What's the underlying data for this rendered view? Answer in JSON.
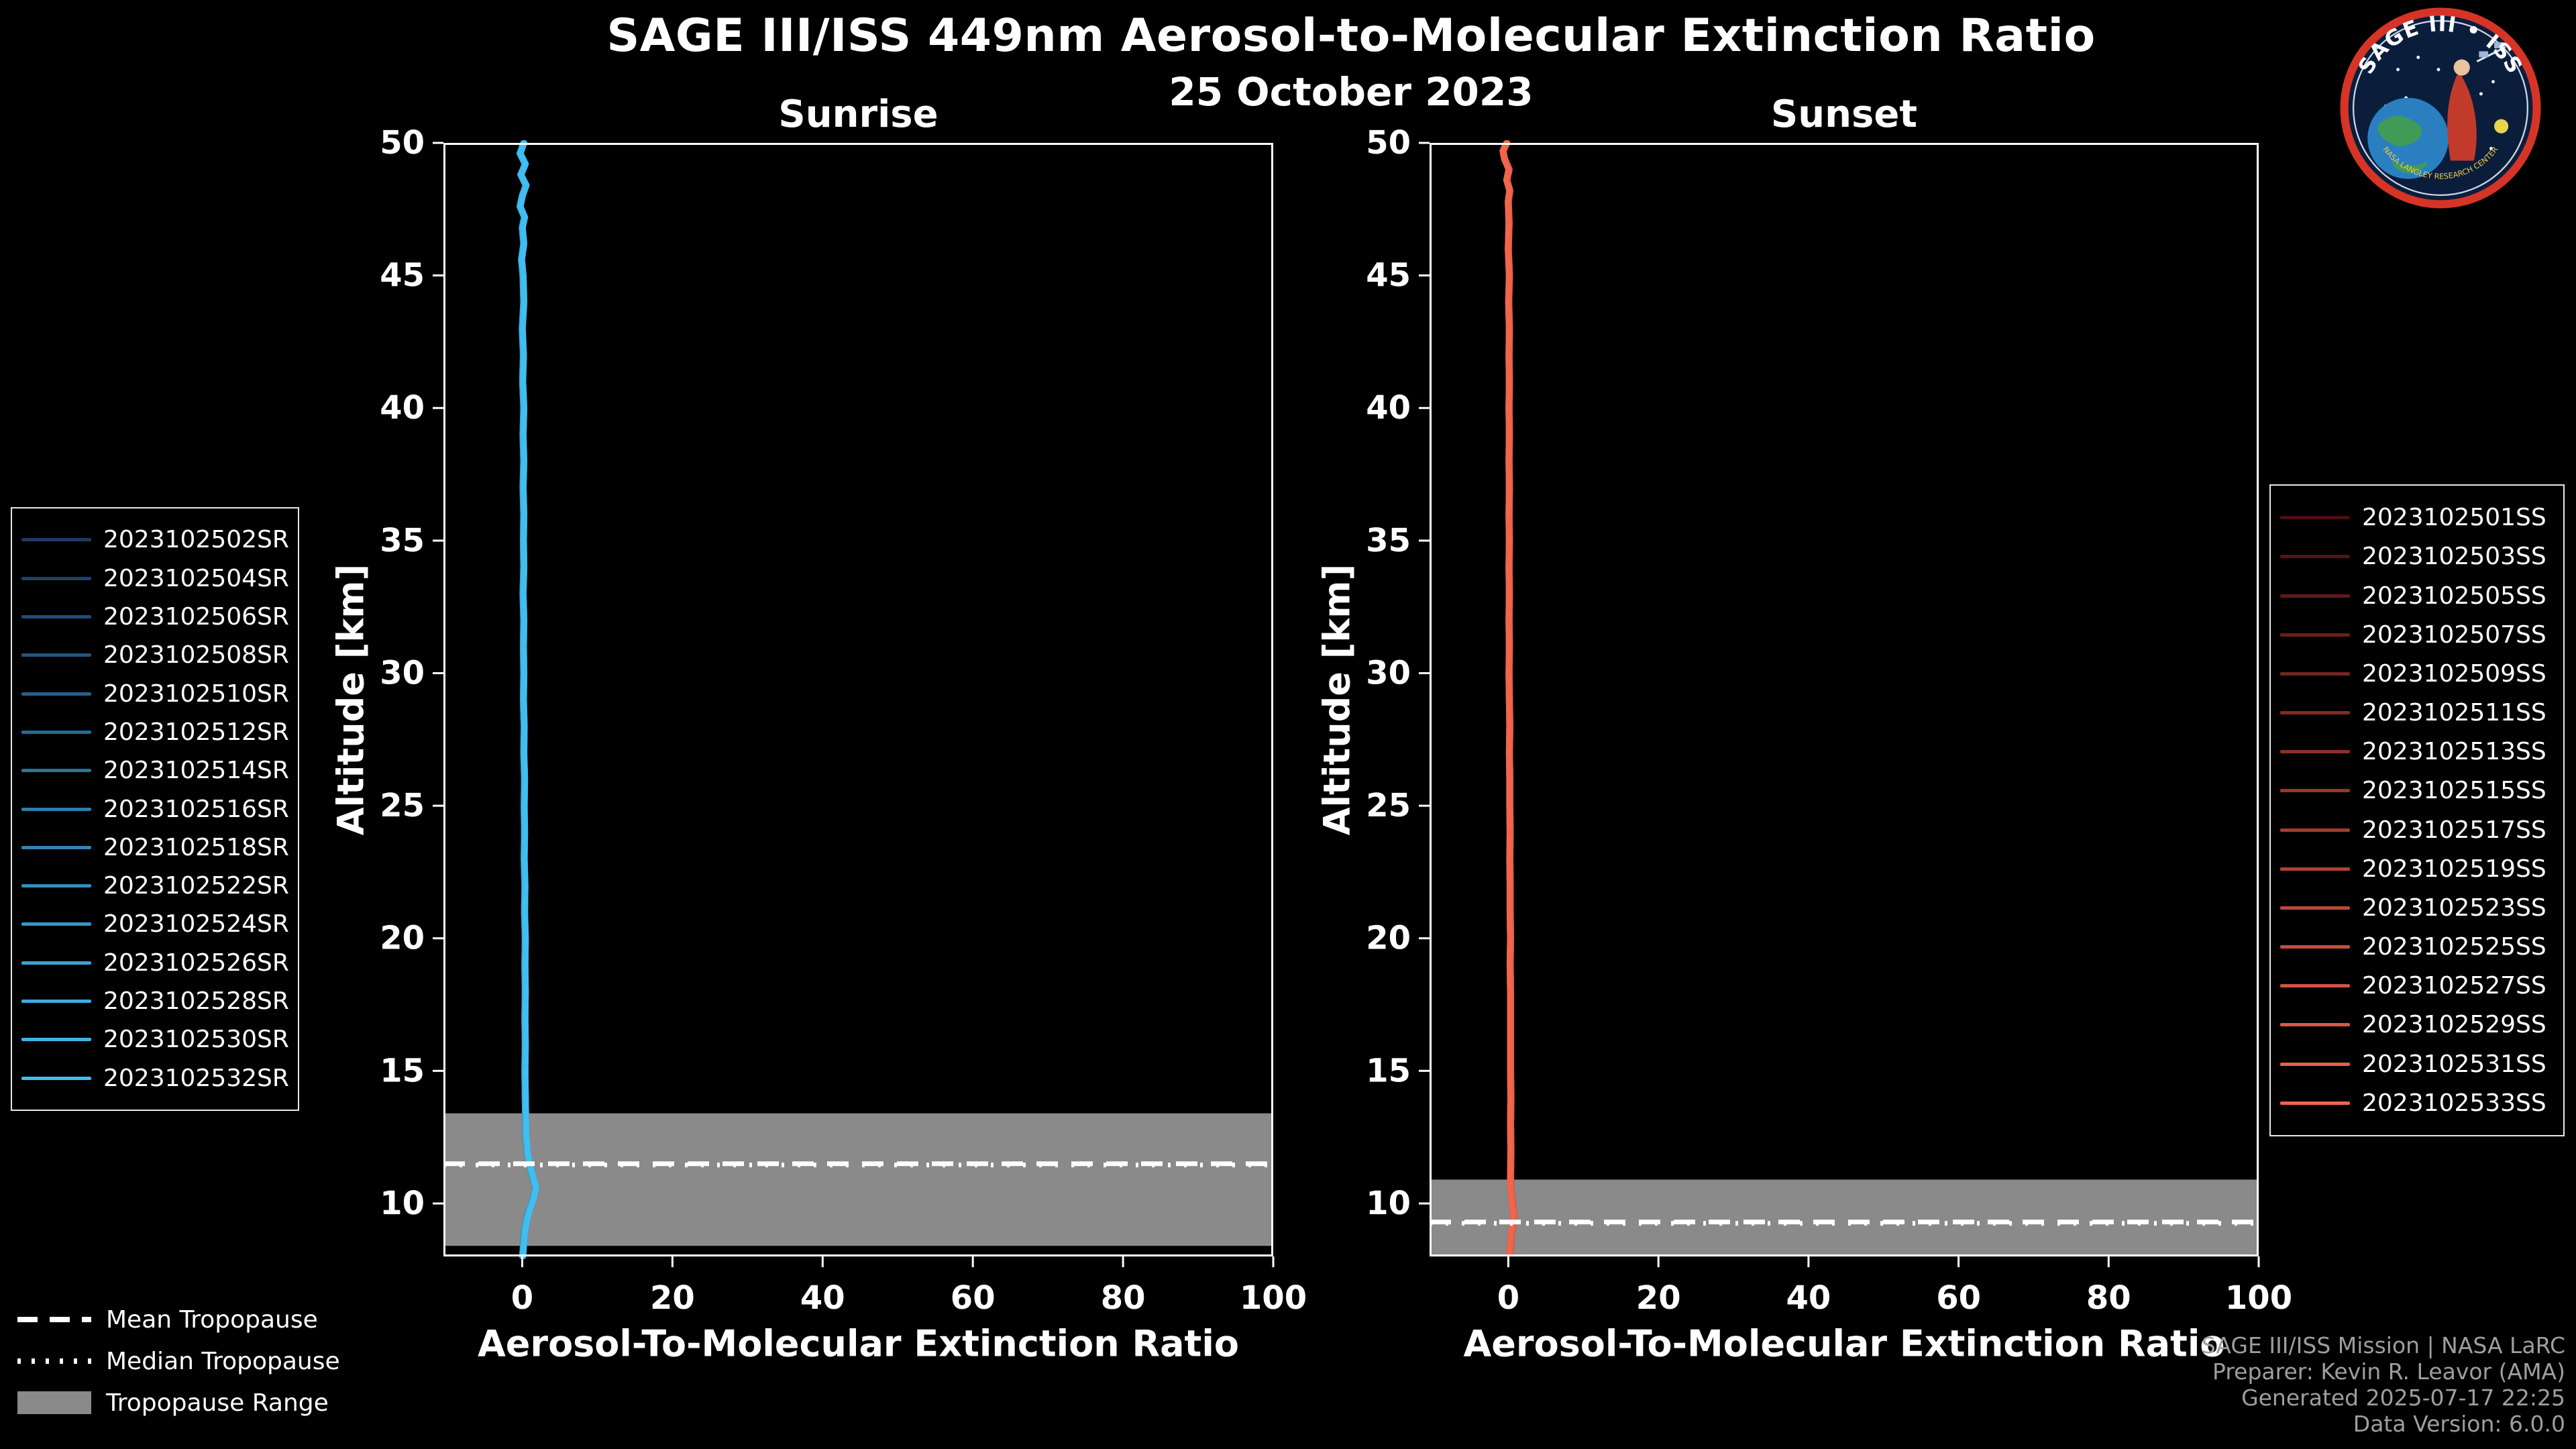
{
  "header": {
    "title": "SAGE III/ISS 449nm Aerosol-to-Molecular Extinction Ratio",
    "date": "25 October 2023"
  },
  "logo": {
    "title": "SAGE III • ISS",
    "arc_text": "NASA LANGLEY RESEARCH CENTER"
  },
  "tropopause_legend": {
    "mean_label": "Mean Tropopause",
    "median_label": "Median Tropopause",
    "range_label": "Tropopause Range"
  },
  "credits": {
    "line1": "SAGE III/ISS Mission | NASA LaRC",
    "line2": "Preparer: Kevin R. Leavor (AMA)",
    "line3": "Generated 2025-07-17 22:25",
    "line4": "Data Version: 6.0.0"
  },
  "colors": {
    "background": "#000000",
    "foreground": "#ffffff",
    "sunrise_profile": "#41bef0",
    "sunset_profile": "#f2654d",
    "tropopause_band": "#8a8a8a",
    "credits_text": "#9e9e9e",
    "logo_ring": "#d63427",
    "logo_bg": "#0a1e3c"
  },
  "legends": {
    "sunrise": {
      "items": [
        {
          "label": "2023102502SR",
          "color": "#1a3a62"
        },
        {
          "label": "2023102504SR",
          "color": "#1d436c"
        },
        {
          "label": "2023102506SR",
          "color": "#204d76"
        },
        {
          "label": "2023102508SR",
          "color": "#225680"
        },
        {
          "label": "2023102510SR",
          "color": "#25608b"
        },
        {
          "label": "2023102512SR",
          "color": "#286995"
        },
        {
          "label": "2023102514SR",
          "color": "#2b739f"
        },
        {
          "label": "2023102516SR",
          "color": "#2e7ca9"
        },
        {
          "label": "2023102518SR",
          "color": "#3085b3"
        },
        {
          "label": "2023102522SR",
          "color": "#338fbd"
        },
        {
          "label": "2023102524SR",
          "color": "#3698c7"
        },
        {
          "label": "2023102526SR",
          "color": "#39a2d2"
        },
        {
          "label": "2023102528SR",
          "color": "#3babdc"
        },
        {
          "label": "2023102530SR",
          "color": "#3eb5e6"
        },
        {
          "label": "2023102532SR",
          "color": "#41bef0"
        }
      ]
    },
    "sunset": {
      "items": [
        {
          "label": "2023102501SS",
          "color": "#4a0e10"
        },
        {
          "label": "2023102503SS",
          "color": "#551414"
        },
        {
          "label": "2023102505SS",
          "color": "#601a18"
        },
        {
          "label": "2023102507SS",
          "color": "#6c1f1c"
        },
        {
          "label": "2023102509SS",
          "color": "#772520"
        },
        {
          "label": "2023102511SS",
          "color": "#822b24"
        },
        {
          "label": "2023102513SS",
          "color": "#8d3128"
        },
        {
          "label": "2023102515SS",
          "color": "#98372c"
        },
        {
          "label": "2023102517SS",
          "color": "#a43c31"
        },
        {
          "label": "2023102519SS",
          "color": "#af4235"
        },
        {
          "label": "2023102523SS",
          "color": "#ba4839"
        },
        {
          "label": "2023102525SS",
          "color": "#c54e3d"
        },
        {
          "label": "2023102527SS",
          "color": "#d15341"
        },
        {
          "label": "2023102529SS",
          "color": "#dc5945"
        },
        {
          "label": "2023102531SS",
          "color": "#e75f49"
        },
        {
          "label": "2023102533SS",
          "color": "#f2654d"
        }
      ]
    }
  },
  "chart_data": [
    {
      "type": "line",
      "id": "sunrise",
      "subtitle": "Sunrise",
      "xlabel": "Aerosol-To-Molecular Extinction Ratio",
      "ylabel": "Altitude [km]",
      "xlim": [
        -10.5,
        100
      ],
      "ylim": [
        8,
        50
      ],
      "xticks": [
        0,
        20,
        40,
        60,
        80,
        100
      ],
      "yticks": [
        10,
        15,
        20,
        25,
        30,
        35,
        40,
        45,
        50
      ],
      "grid": false,
      "legend_position": "outside-left",
      "n_events": 15,
      "tropopause": {
        "mean_km": 11.5,
        "median_km": 11.45,
        "range_km": [
          8.4,
          13.4
        ]
      },
      "profile": [
        [
          0.2,
          50
        ],
        [
          -0.3,
          49.6
        ],
        [
          0.4,
          49.2
        ],
        [
          -0.2,
          48.8
        ],
        [
          0.5,
          48.4
        ],
        [
          0,
          48
        ],
        [
          -0.3,
          47.6
        ],
        [
          0.3,
          47.2
        ],
        [
          0,
          46.8
        ],
        [
          0.2,
          46.2
        ],
        [
          -0.1,
          45.6
        ],
        [
          0.1,
          45
        ],
        [
          0.2,
          44
        ],
        [
          0,
          43
        ],
        [
          0.15,
          42
        ],
        [
          0.05,
          41
        ],
        [
          0.2,
          40
        ],
        [
          0.1,
          39
        ],
        [
          0.2,
          38
        ],
        [
          0.1,
          37
        ],
        [
          0.2,
          36
        ],
        [
          0.15,
          35
        ],
        [
          0.2,
          34
        ],
        [
          0.1,
          33
        ],
        [
          0.2,
          32
        ],
        [
          0.15,
          31
        ],
        [
          0.2,
          30
        ],
        [
          0.15,
          29
        ],
        [
          0.25,
          28
        ],
        [
          0.2,
          27
        ],
        [
          0.3,
          26
        ],
        [
          0.25,
          25
        ],
        [
          0.3,
          24
        ],
        [
          0.25,
          23
        ],
        [
          0.35,
          22
        ],
        [
          0.3,
          21
        ],
        [
          0.4,
          20
        ],
        [
          0.35,
          19
        ],
        [
          0.4,
          18
        ],
        [
          0.35,
          17
        ],
        [
          0.4,
          16
        ],
        [
          0.35,
          15
        ],
        [
          0.4,
          14
        ],
        [
          0.45,
          13
        ],
        [
          0.5,
          12.5
        ],
        [
          0.65,
          12
        ],
        [
          0.9,
          11.5
        ],
        [
          1.4,
          11
        ],
        [
          1.8,
          10.6
        ],
        [
          1.5,
          10.2
        ],
        [
          1,
          9.8
        ],
        [
          0.6,
          9.4
        ],
        [
          0.35,
          9
        ],
        [
          0.2,
          8.6
        ],
        [
          0.1,
          8.2
        ],
        [
          0.05,
          8
        ]
      ]
    },
    {
      "type": "line",
      "id": "sunset",
      "subtitle": "Sunset",
      "xlabel": "Aerosol-To-Molecular Extinction Ratio",
      "ylabel": "Altitude [km]",
      "xlim": [
        -10.5,
        100
      ],
      "ylim": [
        8,
        50
      ],
      "xticks": [
        0,
        20,
        40,
        60,
        80,
        100
      ],
      "yticks": [
        10,
        15,
        20,
        25,
        30,
        35,
        40,
        45,
        50
      ],
      "grid": false,
      "legend_position": "outside-right",
      "n_events": 16,
      "tropopause": {
        "mean_km": 9.3,
        "median_km": 9.25,
        "range_km": [
          8.0,
          10.9
        ]
      },
      "profile": [
        [
          -0.2,
          50
        ],
        [
          -0.7,
          49.7
        ],
        [
          -0.5,
          49.4
        ],
        [
          0.1,
          49
        ],
        [
          -0.2,
          48.6
        ],
        [
          0.2,
          48.2
        ],
        [
          0,
          47.8
        ],
        [
          0.1,
          47
        ],
        [
          0,
          46
        ],
        [
          0.15,
          45
        ],
        [
          0.05,
          44
        ],
        [
          0.15,
          43
        ],
        [
          0.1,
          42
        ],
        [
          0.15,
          41
        ],
        [
          0.1,
          40
        ],
        [
          0.15,
          39
        ],
        [
          0.1,
          38
        ],
        [
          0.15,
          37
        ],
        [
          0.1,
          36
        ],
        [
          0.15,
          35
        ],
        [
          0.1,
          34
        ],
        [
          0.15,
          33
        ],
        [
          0.1,
          32
        ],
        [
          0.15,
          31
        ],
        [
          0.1,
          30
        ],
        [
          0.15,
          29
        ],
        [
          0.2,
          28
        ],
        [
          0.15,
          27
        ],
        [
          0.2,
          26
        ],
        [
          0.2,
          25
        ],
        [
          0.25,
          24
        ],
        [
          0.2,
          23
        ],
        [
          0.25,
          22
        ],
        [
          0.25,
          21
        ],
        [
          0.3,
          20
        ],
        [
          0.25,
          19
        ],
        [
          0.3,
          18
        ],
        [
          0.3,
          17
        ],
        [
          0.3,
          16
        ],
        [
          0.3,
          15
        ],
        [
          0.35,
          14
        ],
        [
          0.3,
          13
        ],
        [
          0.35,
          12
        ],
        [
          0.3,
          11
        ],
        [
          0.35,
          10.5
        ],
        [
          0.55,
          10
        ],
        [
          0.75,
          9.6
        ],
        [
          0.6,
          9.2
        ],
        [
          0.4,
          8.8
        ],
        [
          0.3,
          8.4
        ],
        [
          0.2,
          8.1
        ]
      ]
    }
  ]
}
